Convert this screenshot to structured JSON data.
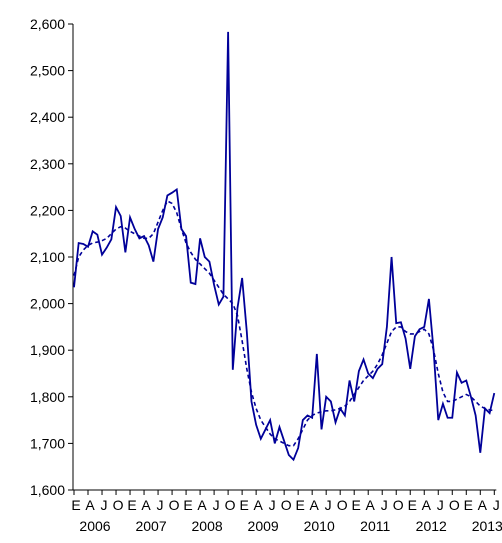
{
  "chart_data": {
    "type": "line",
    "categories": [
      "E",
      null,
      null,
      "A",
      null,
      null,
      "J",
      null,
      null,
      "O",
      null,
      null,
      "E",
      null,
      null,
      "A",
      null,
      null,
      "J",
      null,
      null,
      "O",
      null,
      null,
      "E",
      null,
      null,
      "A",
      null,
      null,
      "J",
      null,
      null,
      "O",
      null,
      null,
      "E",
      null,
      null,
      "A",
      null,
      null,
      "J",
      null,
      null,
      "O",
      null,
      null,
      "E",
      null,
      null,
      "A",
      null,
      null,
      "J",
      null,
      null,
      "O",
      null,
      null,
      "E",
      null,
      null,
      "A",
      null,
      null,
      "J",
      null,
      null,
      "O",
      null,
      null,
      "E",
      null,
      null,
      "A",
      null,
      null,
      "J",
      null,
      null,
      "O",
      null,
      null,
      "E",
      null,
      null,
      "A",
      null,
      null,
      "J"
    ],
    "years": [
      "2006",
      "2007",
      "2008",
      "2009",
      "2010",
      "2011",
      "2012",
      "2013"
    ],
    "series": [
      {
        "color": "#000099",
        "dash": false,
        "values": [
          2035,
          2130,
          2128,
          2122,
          2155,
          2148,
          2105,
          2120,
          2138,
          2207,
          2188,
          2110,
          2185,
          2160,
          2140,
          2145,
          2125,
          2090,
          2160,
          2185,
          2232,
          2238,
          2245,
          2160,
          2145,
          2045,
          2042,
          2140,
          2100,
          2090,
          2040,
          1998,
          2015,
          2583,
          1858,
          1990,
          2055,
          1940,
          1790,
          1740,
          1710,
          1730,
          1750,
          1700,
          1735,
          1705,
          1675,
          1665,
          1690,
          1750,
          1760,
          1755,
          1892,
          1730,
          1800,
          1790,
          1745,
          1775,
          1760,
          1835,
          1790,
          1855,
          1880,
          1850,
          1840,
          1860,
          1870,
          1950,
          2100,
          1958,
          1960,
          1925,
          1860,
          1930,
          1945,
          1950,
          2010,
          1900,
          1750,
          1785,
          1755,
          1755,
          1852,
          1830,
          1835,
          1800,
          1760,
          1680,
          1775,
          1765,
          1808
        ]
      },
      {
        "color": "#000099",
        "dash": true,
        "values": [
          2060,
          2100,
          2115,
          2125,
          2130,
          2132,
          2135,
          2140,
          2150,
          2160,
          2165,
          2162,
          2155,
          2150,
          2145,
          2140,
          2140,
          2150,
          2175,
          2200,
          2220,
          2215,
          2195,
          2160,
          2130,
          2110,
          2095,
          2085,
          2075,
          2065,
          2050,
          2035,
          2020,
          2010,
          2000,
          1975,
          1920,
          1860,
          1810,
          1775,
          1750,
          1735,
          1720,
          1710,
          1705,
          1700,
          1695,
          1695,
          1710,
          1730,
          1750,
          1760,
          1765,
          1768,
          1770,
          1770,
          1772,
          1775,
          1780,
          1790,
          1805,
          1820,
          1835,
          1845,
          1855,
          1870,
          1890,
          1915,
          1940,
          1950,
          1950,
          1940,
          1935,
          1935,
          1940,
          1945,
          1935,
          1900,
          1850,
          1810,
          1790,
          1790,
          1795,
          1800,
          1805,
          1800,
          1790,
          1780,
          1775,
          1772,
          1770
        ]
      }
    ],
    "ylim": [
      1600,
      2600
    ],
    "yticks": [
      {
        "value": 1600,
        "label": "1,600"
      },
      {
        "value": 1700,
        "label": "1,700"
      },
      {
        "value": 1800,
        "label": "1,800"
      },
      {
        "value": 1900,
        "label": "1,900"
      },
      {
        "value": 2000,
        "label": "2,000"
      },
      {
        "value": 2100,
        "label": "2,100"
      },
      {
        "value": 2200,
        "label": "2,200"
      },
      {
        "value": 2300,
        "label": "2,300"
      },
      {
        "value": 2400,
        "label": "2,400"
      },
      {
        "value": 2500,
        "label": "2,500"
      },
      {
        "value": 2600,
        "label": "2,600"
      }
    ]
  }
}
